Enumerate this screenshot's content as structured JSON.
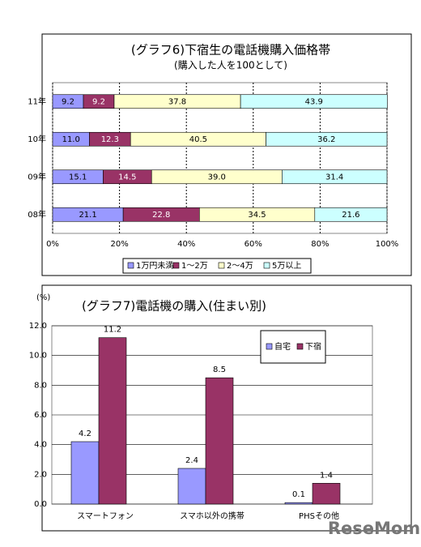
{
  "chart_data": [
    {
      "type": "bar",
      "orientation": "horizontal",
      "stacked": true,
      "title": "(グラフ6)下宿生の電話機購入価格帯",
      "subtitle": "(購入した人を100として)",
      "categories": [
        "11年",
        "10年",
        "09年",
        "08年"
      ],
      "series": [
        {
          "name": "1万円未満",
          "color": "#9999ff",
          "values": [
            9.2,
            11.0,
            15.1,
            21.1
          ],
          "value_labels": [
            "9.2",
            "11.0",
            "15.1",
            "21.1"
          ]
        },
        {
          "name": "1〜2万",
          "color": "#993366",
          "values": [
            9.2,
            12.3,
            14.5,
            22.8
          ],
          "value_labels": [
            "9.2",
            "12.3",
            "14.5",
            "22.8"
          ]
        },
        {
          "name": "2〜4万",
          "color": "#ffffcc",
          "values": [
            37.8,
            40.5,
            39.0,
            34.5
          ],
          "value_labels": [
            "37.8",
            "40.5",
            "39.0",
            "34.5"
          ]
        },
        {
          "name": "5万以上",
          "color": "#ccffff",
          "values": [
            43.9,
            36.2,
            31.4,
            21.6
          ],
          "value_labels": [
            "43.9",
            "36.2",
            "31.4",
            "21.6"
          ]
        }
      ],
      "xlim": [
        0,
        100
      ],
      "xticks": [
        {
          "value": 0,
          "label": "0%"
        },
        {
          "value": 20,
          "label": "20%"
        },
        {
          "value": 40,
          "label": "40%"
        },
        {
          "value": 60,
          "label": "60%"
        },
        {
          "value": 80,
          "label": "80%"
        },
        {
          "value": 100,
          "label": "100%"
        }
      ],
      "grid": true,
      "legend": "bottom"
    },
    {
      "type": "bar",
      "title": "(グラフ7)電話機の購入(住まい別)",
      "y_label": "(%)",
      "categories": [
        "スマートフォン",
        "スマホ以外の携帯",
        "PHSその他"
      ],
      "series": [
        {
          "name": "自宅",
          "color": "#9999ff",
          "values": [
            4.2,
            2.4,
            0.1
          ]
        },
        {
          "name": "下宿",
          "color": "#993366",
          "values": [
            11.2,
            8.5,
            1.4
          ]
        }
      ],
      "ylim": [
        0,
        12
      ],
      "yticks": [
        {
          "value": 0,
          "label": "0.0"
        },
        {
          "value": 2,
          "label": "2.0"
        },
        {
          "value": 4,
          "label": "4.0"
        },
        {
          "value": 6,
          "label": "6.0"
        },
        {
          "value": 8,
          "label": "8.0"
        },
        {
          "value": 10,
          "label": "10.0"
        },
        {
          "value": 12,
          "label": "12.0"
        }
      ],
      "grid": true,
      "legend": "upper right"
    }
  ],
  "watermark": "ReseMom"
}
